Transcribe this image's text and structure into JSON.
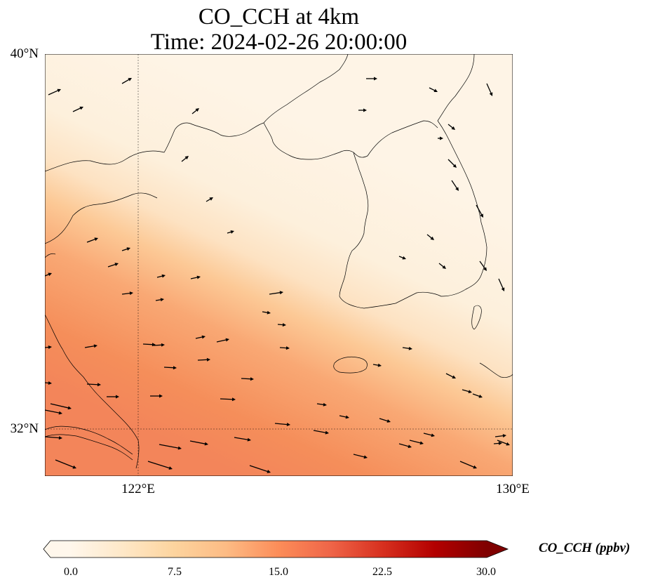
{
  "title": {
    "line1": "CO_CCH at 4km",
    "line2": "Time: 2024-02-26 20:00:00"
  },
  "axes": {
    "lat_ticks": [
      "40°N",
      "32°N"
    ],
    "lon_ticks": [
      "122°E",
      "130°E"
    ],
    "gridlines": "dotted",
    "extent": {
      "lon_min": 120,
      "lon_max": 130,
      "lat_min": 31,
      "lat_max": 40
    }
  },
  "colorbar": {
    "label": "CO_CCH (ppbv)",
    "ticks": [
      "0.0",
      "7.5",
      "15.0",
      "22.5",
      "30.0"
    ],
    "min": 0,
    "max": 30,
    "extend": "both",
    "colormap": "OrRd",
    "colors": [
      "#fff7ec",
      "#fee8c8",
      "#fdd49e",
      "#fdbb84",
      "#fc8d59",
      "#ef6548",
      "#d7301f",
      "#b30000",
      "#7f0000"
    ]
  },
  "field": {
    "description_values": "CO concentration low (~0–3 ppbv) over north/east, rising to ~13–15 ppbv in southwest band",
    "max_value_shown": 14,
    "min_value_shown": 0.5
  },
  "wind_vectors": "prevailing westerly to north-westerly flow"
}
